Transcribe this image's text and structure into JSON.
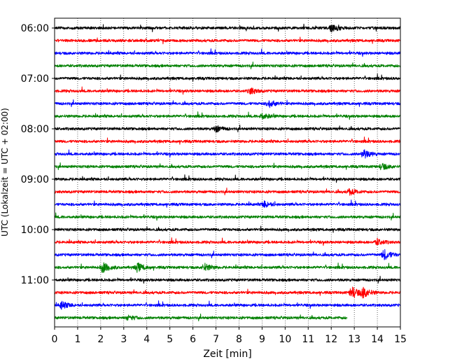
{
  "chart_data": {
    "type": "line",
    "title": "",
    "xlabel": "Zeit  [min]",
    "ylabel": "UTC (Lokalzeit = UTC + 02:00)",
    "xlim": [
      0,
      15
    ],
    "x_ticks": [
      0,
      1,
      2,
      3,
      4,
      5,
      6,
      7,
      8,
      9,
      10,
      11,
      12,
      13,
      14,
      15
    ],
    "x_tick_labels": [
      "0",
      "1",
      "2",
      "3",
      "4",
      "5",
      "6",
      "7",
      "8",
      "9",
      "10",
      "11",
      "12",
      "13",
      "14",
      "15"
    ],
    "y_ticks": [
      "06:00",
      "07:00",
      "08:00",
      "09:00",
      "10:00",
      "11:00"
    ],
    "grid": "vertical dotted",
    "trace_colors": [
      "#000000",
      "#ff0000",
      "#0000ff",
      "#008000"
    ],
    "traces": [
      {
        "start": "06:00",
        "color": "#000000",
        "end_min": 15,
        "events": [
          {
            "t": 12,
            "amp": 5
          }
        ]
      },
      {
        "start": "06:15",
        "color": "#ff0000",
        "end_min": 15,
        "events": []
      },
      {
        "start": "06:30",
        "color": "#0000ff",
        "end_min": 15,
        "events": []
      },
      {
        "start": "06:45",
        "color": "#008000",
        "end_min": 15,
        "events": []
      },
      {
        "start": "07:00",
        "color": "#000000",
        "end_min": 15,
        "events": []
      },
      {
        "start": "07:15",
        "color": "#ff0000",
        "end_min": 15,
        "events": [
          {
            "t": 8.5,
            "amp": 4
          }
        ]
      },
      {
        "start": "07:30",
        "color": "#0000ff",
        "end_min": 15,
        "events": [
          {
            "t": 9.3,
            "amp": 5
          }
        ]
      },
      {
        "start": "07:45",
        "color": "#008000",
        "end_min": 15,
        "events": [
          {
            "t": 9,
            "amp": 4
          }
        ]
      },
      {
        "start": "08:00",
        "color": "#000000",
        "end_min": 15,
        "events": [
          {
            "t": 7,
            "amp": 4
          }
        ]
      },
      {
        "start": "08:15",
        "color": "#ff0000",
        "end_min": 15,
        "events": []
      },
      {
        "start": "08:30",
        "color": "#0000ff",
        "end_min": 15,
        "events": [
          {
            "t": 13.4,
            "amp": 6
          }
        ]
      },
      {
        "start": "08:45",
        "color": "#008000",
        "end_min": 15,
        "events": [
          {
            "t": 14.2,
            "amp": 4
          }
        ]
      },
      {
        "start": "09:00",
        "color": "#000000",
        "end_min": 15,
        "events": []
      },
      {
        "start": "09:15",
        "color": "#ff0000",
        "end_min": 15,
        "events": [
          {
            "t": 12.8,
            "amp": 4
          }
        ]
      },
      {
        "start": "09:30",
        "color": "#0000ff",
        "end_min": 15,
        "events": [
          {
            "t": 9.1,
            "amp": 4
          }
        ]
      },
      {
        "start": "09:45",
        "color": "#008000",
        "end_min": 15,
        "events": []
      },
      {
        "start": "10:00",
        "color": "#000000",
        "end_min": 15,
        "events": []
      },
      {
        "start": "10:15",
        "color": "#ff0000",
        "end_min": 15,
        "events": [
          {
            "t": 14,
            "amp": 4
          }
        ]
      },
      {
        "start": "10:30",
        "color": "#0000ff",
        "end_min": 15,
        "events": [
          {
            "t": 14.3,
            "amp": 7
          }
        ]
      },
      {
        "start": "10:45",
        "color": "#008000",
        "end_min": 15,
        "events": [
          {
            "t": 2.1,
            "amp": 7
          },
          {
            "t": 3.6,
            "amp": 6
          },
          {
            "t": 6.5,
            "amp": 5
          }
        ]
      },
      {
        "start": "11:00",
        "color": "#000000",
        "end_min": 15,
        "events": []
      },
      {
        "start": "11:15",
        "color": "#ff0000",
        "end_min": 15,
        "events": [
          {
            "t": 12.9,
            "amp": 8
          },
          {
            "t": 13.4,
            "amp": 7
          }
        ]
      },
      {
        "start": "11:30",
        "color": "#0000ff",
        "end_min": 15,
        "events": [
          {
            "t": 0.3,
            "amp": 5
          }
        ]
      },
      {
        "start": "11:45",
        "color": "#008000",
        "end_min": 12.7,
        "events": [
          {
            "t": 3.2,
            "amp": 3
          }
        ]
      }
    ]
  }
}
